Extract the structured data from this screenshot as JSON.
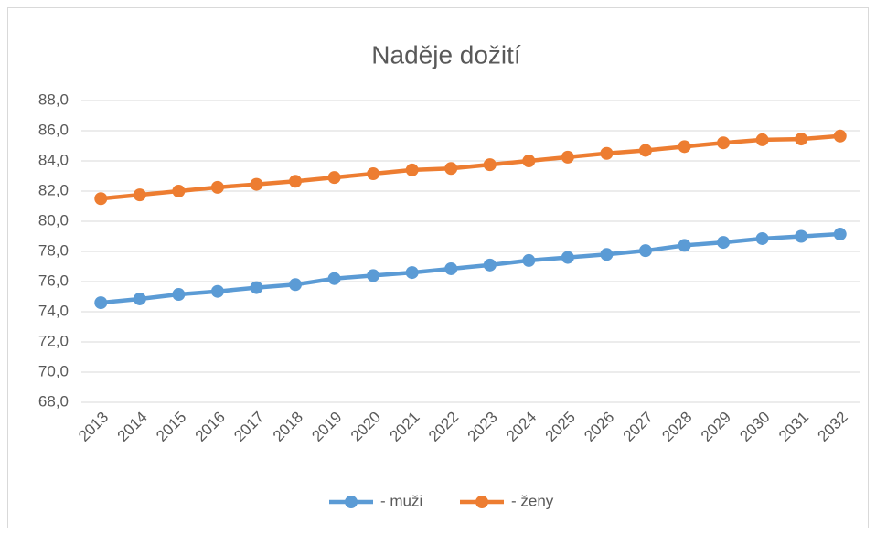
{
  "chart_data": {
    "type": "line",
    "title": "Naděje dožití",
    "categories": [
      "2013",
      "2014",
      "2015",
      "2016",
      "2017",
      "2018",
      "2019",
      "2020",
      "2021",
      "2022",
      "2023",
      "2024",
      "2025",
      "2026",
      "2027",
      "2028",
      "2029",
      "2030",
      "2031",
      "2032"
    ],
    "series": [
      {
        "name": "- muži",
        "color": "#5b9bd5",
        "values": [
          74.6,
          74.85,
          75.15,
          75.35,
          75.6,
          75.8,
          76.2,
          76.4,
          76.6,
          76.85,
          77.1,
          77.4,
          77.6,
          77.8,
          78.05,
          78.4,
          78.6,
          78.85,
          79.0,
          79.15
        ]
      },
      {
        "name": "- ženy",
        "color": "#ed7d31",
        "values": [
          81.5,
          81.75,
          82.0,
          82.25,
          82.45,
          82.65,
          82.9,
          83.15,
          83.4,
          83.5,
          83.75,
          84.0,
          84.25,
          84.5,
          84.7,
          84.95,
          85.2,
          85.4,
          85.45,
          85.65
        ]
      }
    ],
    "ylim": [
      68,
      88
    ],
    "yticks": [
      {
        "value": 68,
        "label": "68,0"
      },
      {
        "value": 70,
        "label": "70,0"
      },
      {
        "value": 72,
        "label": "72,0"
      },
      {
        "value": 74,
        "label": "74,0"
      },
      {
        "value": 76,
        "label": "76,0"
      },
      {
        "value": 78,
        "label": "78,0"
      },
      {
        "value": 80,
        "label": "80,0"
      },
      {
        "value": 82,
        "label": "82,0"
      },
      {
        "value": 84,
        "label": "84,0"
      },
      {
        "value": 86,
        "label": "86,0"
      },
      {
        "value": 88,
        "label": "88,0"
      }
    ],
    "grid": true,
    "legend": "bottom"
  }
}
